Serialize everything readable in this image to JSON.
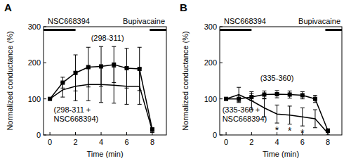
{
  "chart_data": [
    {
      "type": "line",
      "title": "A",
      "x_label": "Time (min)",
      "y_label": "Normalized conductance (%)",
      "xlim": [
        -0.5,
        9.1
      ],
      "ylim": [
        0,
        300
      ],
      "xticks": [
        0,
        2,
        4,
        6,
        8
      ],
      "yticks": [
        0,
        100,
        200,
        300
      ],
      "x": [
        0,
        1,
        2,
        3,
        4,
        5,
        6,
        7,
        8
      ],
      "series": [
        {
          "name": "(298-311)",
          "color": "#000000",
          "marker": "square",
          "line_style": "solid",
          "values": [
            100,
            145,
            172,
            188,
            190,
            195,
            185,
            183,
            15
          ],
          "errors": [
            0,
            15,
            50,
            55,
            55,
            50,
            55,
            60,
            5
          ]
        },
        {
          "name": "(298-311 + NSC668394)",
          "color": "#000000",
          "marker": "none",
          "line_style": "solid",
          "values": [
            100,
            125,
            135,
            140,
            140,
            138,
            135,
            135,
            12
          ],
          "errors": [
            0,
            20,
            40,
            45,
            50,
            50,
            50,
            50,
            5
          ]
        }
      ],
      "periods": [
        {
          "label": "NSC668394",
          "start": -0.5,
          "end": 2
        },
        {
          "label": "Bupivacaine",
          "start": 7.8,
          "end": 9.1
        }
      ],
      "annotations": []
    },
    {
      "type": "line",
      "title": "B",
      "x_label": "Time (min)",
      "y_label": "Normalized conductance (%)",
      "xlim": [
        -0.5,
        9.1
      ],
      "ylim": [
        0,
        300
      ],
      "xticks": [
        0,
        2,
        4,
        6,
        8
      ],
      "yticks": [
        0,
        100,
        200,
        300
      ],
      "x": [
        0,
        1,
        2,
        3,
        4,
        5,
        6,
        7,
        8
      ],
      "series": [
        {
          "name": "(335-360)",
          "color": "#000000",
          "marker": "square",
          "line_style": "solid",
          "values": [
            100,
            100,
            105,
            112,
            113,
            112,
            110,
            100,
            12
          ],
          "errors": [
            0,
            10,
            10,
            10,
            10,
            10,
            10,
            10,
            5
          ]
        },
        {
          "name": "(335-360 + NSC668394)",
          "color": "#000000",
          "marker": "none",
          "line_style": "solid",
          "values": [
            100,
            112,
            95,
            75,
            58,
            55,
            50,
            45,
            5
          ],
          "errors": [
            0,
            20,
            25,
            25,
            25,
            25,
            25,
            25,
            5
          ]
        }
      ],
      "periods": [
        {
          "label": "NSC668394",
          "start": -0.5,
          "end": 2
        },
        {
          "label": "Bupivacaine",
          "start": 7.8,
          "end": 9.1
        }
      ],
      "annotations": [
        {
          "text": "*",
          "x": 4,
          "y": 20
        },
        {
          "text": "*",
          "x": 5,
          "y": 17
        },
        {
          "text": "*",
          "x": 6,
          "y": 12
        }
      ]
    }
  ]
}
